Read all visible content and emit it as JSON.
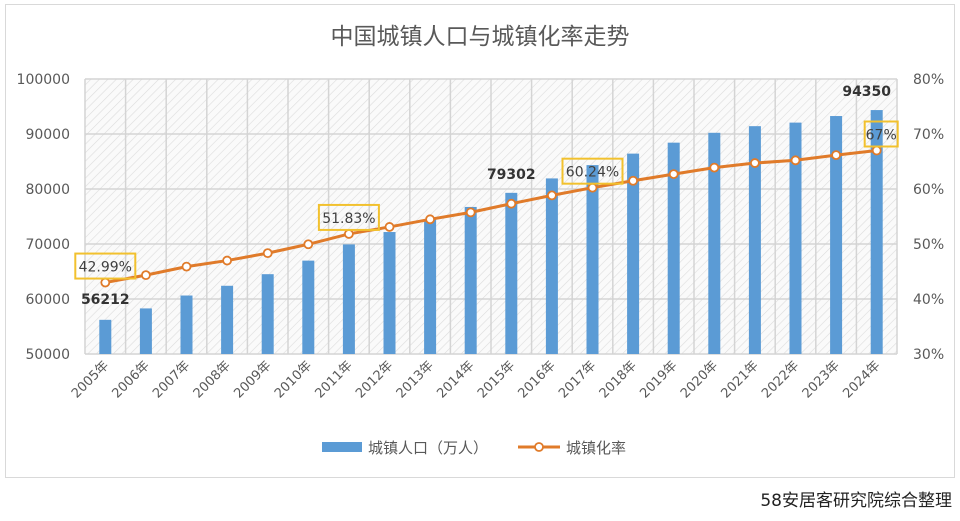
{
  "chart_data": {
    "type": "bar+line",
    "title": "中国城镇人口与城镇化率走势",
    "categories": [
      "2005年",
      "2006年",
      "2007年",
      "2008年",
      "2009年",
      "2010年",
      "2011年",
      "2012年",
      "2013年",
      "2014年",
      "2015年",
      "2016年",
      "2017年",
      "2018年",
      "2019年",
      "2020年",
      "2021年",
      "2022年",
      "2023年",
      "2024年"
    ],
    "series": [
      {
        "name": "城镇人口（万人）",
        "type": "bar",
        "axis": "left",
        "color": "#5b9bd5",
        "values": [
          56212,
          58288,
          60633,
          62403,
          64512,
          66978,
          69927,
          72175,
          74502,
          76738,
          79302,
          81924,
          84343,
          86433,
          88426,
          90220,
          91425,
          92071,
          93267,
          94350
        ]
      },
      {
        "name": "城镇化率",
        "type": "line",
        "axis": "right",
        "color": "#e07b2a",
        "values": [
          42.99,
          44.34,
          45.89,
          46.99,
          48.34,
          49.95,
          51.83,
          53.1,
          54.49,
          55.75,
          57.33,
          58.84,
          60.24,
          61.5,
          62.71,
          63.89,
          64.72,
          65.22,
          66.16,
          67.0
        ]
      }
    ],
    "bar_labels": [
      {
        "index": 0,
        "text": "56212"
      },
      {
        "index": 10,
        "text": "79302"
      },
      {
        "index": 19,
        "text": "94350"
      }
    ],
    "line_labels": [
      {
        "index": 0,
        "text": "42.99%"
      },
      {
        "index": 6,
        "text": "51.83%"
      },
      {
        "index": 12,
        "text": "60.24%"
      },
      {
        "index": 19,
        "text": "67%"
      }
    ],
    "y_left": {
      "min": 50000,
      "max": 100000,
      "ticks": [
        "50000",
        "60000",
        "70000",
        "80000",
        "90000",
        "100000"
      ]
    },
    "y_right": {
      "min": 30,
      "max": 80,
      "ticks": [
        "30%",
        "40%",
        "50%",
        "60%",
        "70%",
        "80%"
      ]
    },
    "grid": true,
    "legend": "bottom",
    "label_box_color": "#f2c12e"
  },
  "footer": "58安居客研究院综合整理"
}
